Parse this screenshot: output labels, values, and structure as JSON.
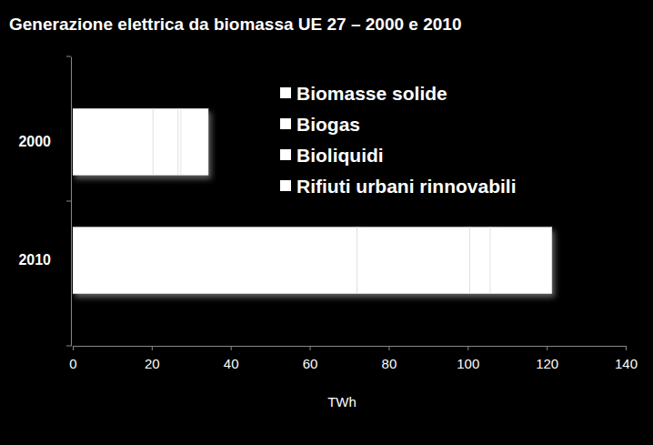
{
  "chart_data": {
    "type": "bar",
    "title": "Generazione elettrica da biomassa  UE 27 – 2000 e 2010",
    "orientation": "horizontal",
    "stacked": true,
    "grid": false,
    "legend": "top-right",
    "categories": [
      "2000",
      "2010"
    ],
    "series": [
      {
        "name": "Biomasse solide",
        "color": "#ffffff",
        "values": [
          20.3,
          72
        ]
      },
      {
        "name": "Biogas",
        "color": "#ffffff",
        "values": [
          6.4,
          28.5
        ]
      },
      {
        "name": "Bioliquidi",
        "color": "#ffffff",
        "values": [
          0.7,
          5.2
        ]
      },
      {
        "name": "Rifiuti urbani rinnovabili",
        "color": "#ffffff",
        "values": [
          6.9,
          15.6
        ]
      }
    ],
    "x_label": "TWh",
    "xlim": [
      0,
      140
    ],
    "xticks": [
      0,
      20,
      40,
      60,
      80,
      100,
      120,
      140
    ]
  }
}
